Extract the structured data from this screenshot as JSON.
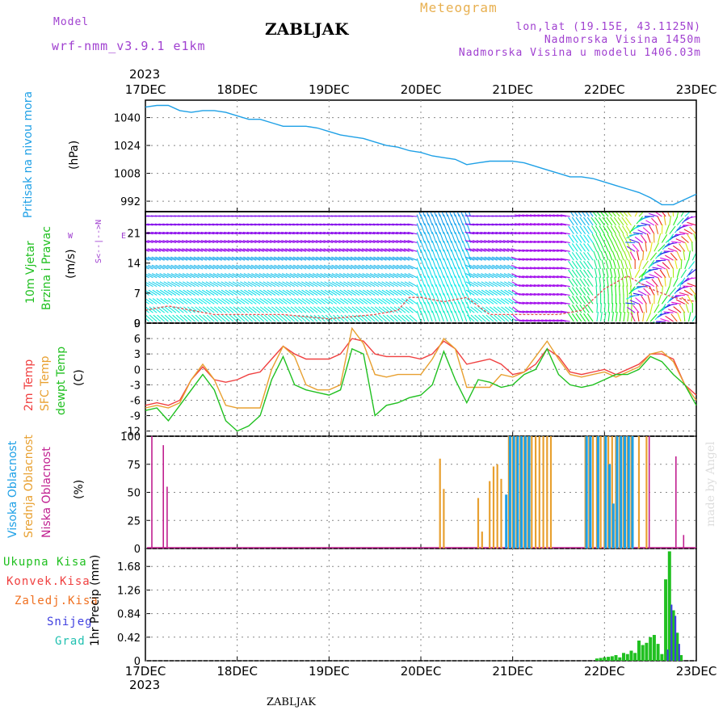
{
  "header": {
    "model_label": "Model",
    "model_name": "wrf-nmm_v3.9.1 e1km",
    "station": "ZABLJAK",
    "meteogram": "Meteogram",
    "coords": "lon,lat (19.15E, 43.1125N)",
    "elev": "Nadmorska Visina 1450m",
    "elev_model": "Nadmorska Visina u modelu 1406.03m",
    "year_top": "2023",
    "year_bottom": "2023",
    "footer_station": "ZABLJAK",
    "credit": "made by Angel"
  },
  "colors": {
    "pressure": "#1ea0e6",
    "t2m": "#f04040",
    "sfc": "#e8a030",
    "dew": "#20c020",
    "high_cloud": "#1ea0e6",
    "mid_cloud": "#e8a030",
    "low_cloud": "#c02090",
    "precip_total": "#20c020",
    "precip_conv": "#f04040",
    "precip_frz": "#f07020",
    "snow": "#4040e0",
    "grad": "#20c0b0"
  },
  "chart_data": [
    {
      "type": "line",
      "panel": "pressure",
      "ylabels": [
        "Pritisak na nivou mora",
        "(hPa)"
      ],
      "yticks": [
        "992",
        "1008",
        "1024",
        "1040"
      ],
      "ylim": [
        986,
        1050
      ],
      "xticks": [
        "17DEC",
        "18DEC",
        "19DEC",
        "20DEC",
        "21DEC",
        "22DEC",
        "23DEC"
      ],
      "xlim": [
        0,
        144
      ],
      "series": [
        {
          "x": [
            0,
            3,
            6,
            9,
            12,
            15,
            18,
            21,
            24,
            27,
            30,
            33,
            36,
            39,
            42,
            45,
            48,
            51,
            54,
            57,
            60,
            63,
            66,
            69,
            72,
            75,
            78,
            81,
            84,
            87,
            90,
            93,
            96,
            99,
            102,
            105,
            108,
            111,
            114,
            117,
            120,
            123,
            126,
            129,
            132,
            135,
            138,
            141,
            144
          ],
          "values": [
            1046,
            1047,
            1047,
            1044,
            1043,
            1044,
            1044,
            1043,
            1041,
            1039,
            1039,
            1037,
            1035,
            1035,
            1035,
            1034,
            1032,
            1030,
            1029,
            1028,
            1026,
            1024,
            1023,
            1021,
            1020,
            1018,
            1017,
            1016,
            1013,
            1014,
            1015,
            1015,
            1015,
            1014,
            1012,
            1010,
            1008,
            1006,
            1006,
            1005,
            1003,
            1001,
            999,
            997,
            994,
            990,
            990,
            993,
            996
          ]
        }
      ]
    },
    {
      "type": "scatter",
      "panel": "wind",
      "ylabels": [
        "10m Vjetar",
        "Brzina i Pravac",
        "(m/s)"
      ],
      "compass": [
        "N",
        "<--|-->",
        "S",
        "W",
        "E"
      ],
      "yticks": [
        "0",
        "7",
        "14",
        "21"
      ],
      "ylim": [
        0,
        26
      ],
      "xlim": [
        0,
        144
      ],
      "speed_x": [
        0,
        6,
        12,
        18,
        24,
        30,
        36,
        42,
        48,
        54,
        60,
        66,
        69,
        72,
        78,
        84,
        90,
        96,
        102,
        108,
        114,
        120,
        126,
        132,
        138,
        144
      ],
      "speed": [
        3,
        4,
        3,
        2,
        2,
        2,
        2,
        1.5,
        1,
        1.5,
        2,
        3,
        6,
        6,
        5,
        6,
        2,
        2,
        2,
        2,
        3,
        8,
        11,
        8,
        6,
        5
      ],
      "speed_color": "#e05050"
    },
    {
      "type": "line",
      "panel": "temperature",
      "ylabels": [
        "2m Temp",
        "SFC Temp",
        "dewpt Temp",
        "(C)"
      ],
      "yticks": [
        "-12",
        "-9",
        "-6",
        "-3",
        "0",
        "3",
        "6",
        "9"
      ],
      "ylim": [
        -13,
        9
      ],
      "xlim": [
        0,
        144
      ],
      "series": [
        {
          "name": "2m Temp",
          "x": [
            0,
            3,
            6,
            9,
            12,
            15,
            18,
            21,
            24,
            27,
            30,
            33,
            36,
            39,
            42,
            45,
            48,
            51,
            54,
            57,
            60,
            63,
            66,
            69,
            72,
            75,
            78,
            81,
            84,
            87,
            90,
            93,
            96,
            99,
            102,
            105,
            108,
            111,
            114,
            117,
            120,
            123,
            126,
            129,
            132,
            135,
            138,
            141,
            144
          ],
          "values": [
            -7,
            -6.5,
            -7,
            -6,
            -2,
            0.5,
            -2,
            -2.5,
            -2,
            -1,
            -0.5,
            2,
            4.5,
            3,
            2,
            2,
            2,
            3,
            6,
            5.5,
            3,
            2.5,
            2.5,
            2.5,
            2,
            3,
            5.5,
            4,
            1,
            1.5,
            2,
            1,
            -1,
            -0.5,
            1,
            4,
            2.5,
            -0.5,
            -1,
            -0.5,
            0,
            -1,
            0,
            1,
            3,
            3,
            2,
            -3,
            -5
          ]
        },
        {
          "name": "SFC Temp",
          "x": [
            0,
            3,
            6,
            9,
            12,
            15,
            18,
            21,
            24,
            27,
            30,
            33,
            36,
            39,
            42,
            45,
            48,
            51,
            54,
            57,
            60,
            63,
            66,
            69,
            72,
            75,
            78,
            81,
            84,
            87,
            90,
            93,
            96,
            99,
            102,
            105,
            108,
            111,
            114,
            117,
            120,
            123,
            126,
            129,
            132,
            135,
            138,
            141,
            144
          ],
          "values": [
            -7.5,
            -7,
            -7.5,
            -6.5,
            -2,
            1,
            -2,
            -7,
            -7.5,
            -7.5,
            -7.5,
            0,
            4.5,
            2.5,
            -3,
            -4,
            -4,
            -3,
            8,
            5,
            -1,
            -1.5,
            -1,
            -1,
            -1,
            2,
            6,
            4,
            -3.5,
            -3.5,
            -3.5,
            -1,
            -1.5,
            -0.5,
            2.5,
            5.5,
            2,
            -1,
            -1.5,
            -1,
            -0.5,
            -1.5,
            -0.5,
            0.5,
            3,
            3.5,
            1.5,
            -3,
            -6
          ]
        },
        {
          "name": "dewpt Temp",
          "x": [
            0,
            3,
            6,
            9,
            12,
            15,
            18,
            21,
            24,
            27,
            30,
            33,
            36,
            39,
            42,
            45,
            48,
            51,
            54,
            57,
            60,
            63,
            66,
            69,
            72,
            75,
            78,
            81,
            84,
            87,
            90,
            93,
            96,
            99,
            102,
            105,
            108,
            111,
            114,
            117,
            120,
            123,
            126,
            129,
            132,
            135,
            138,
            141,
            144
          ],
          "values": [
            -8,
            -7.5,
            -10,
            -7,
            -4,
            -1,
            -4,
            -10,
            -12,
            -11,
            -9,
            -2,
            2.5,
            -3,
            -4,
            -4.5,
            -5,
            -4,
            4,
            3,
            -9,
            -7,
            -6.5,
            -5.5,
            -5,
            -3,
            3.5,
            -2,
            -6.5,
            -2,
            -2.5,
            -3.5,
            -3,
            -1,
            0,
            4,
            -1,
            -3,
            -3.5,
            -3,
            -2,
            -1,
            -1,
            0,
            2.5,
            1.5,
            -1,
            -3,
            -7
          ]
        }
      ]
    },
    {
      "type": "bar",
      "panel": "cloud",
      "ylabels": [
        "Visoka Oblacnost",
        "Srednja Oblacnost",
        "Niska Oblacnost",
        "(%)"
      ],
      "yticks": [
        "0",
        "25",
        "50",
        "75",
        "100"
      ],
      "ylim": [
        0,
        100
      ],
      "xlim": [
        0,
        144
      ],
      "series": [
        {
          "name": "Niska Oblacnost",
          "x": [
            2,
            5,
            6,
            132,
            139,
            141
          ],
          "values": [
            100,
            92,
            55,
            100,
            82,
            12
          ]
        },
        {
          "name": "Srednja Oblacnost",
          "x": [
            77,
            78,
            87,
            88,
            90,
            91,
            92,
            93,
            95,
            96,
            97,
            98,
            99,
            100,
            101,
            102,
            103,
            104,
            105,
            106,
            115,
            116,
            117,
            118,
            119,
            120,
            121,
            122,
            123,
            124,
            125,
            126,
            127,
            129,
            131
          ],
          "values": [
            80,
            53,
            45,
            15,
            60,
            73,
            75,
            62,
            100,
            100,
            100,
            100,
            100,
            100,
            100,
            100,
            100,
            100,
            100,
            100,
            100,
            100,
            100,
            100,
            100,
            100,
            100,
            100,
            100,
            100,
            100,
            100,
            100,
            100,
            100
          ]
        },
        {
          "name": "Visoka Oblacnost",
          "x": [
            94,
            95,
            96,
            97,
            98,
            99,
            100,
            115,
            116,
            118,
            120,
            121,
            122,
            123,
            124,
            125,
            126,
            127
          ],
          "values": [
            48,
            100,
            100,
            100,
            100,
            100,
            100,
            100,
            100,
            100,
            100,
            75,
            40,
            100,
            100,
            100,
            100,
            100
          ]
        }
      ]
    },
    {
      "type": "bar",
      "panel": "precip",
      "ylabels": [
        "Ukupna Kisa",
        "Konvek.Kisa",
        "Zaledj.Kisa",
        "Snijeg",
        "Grad",
        "1hr Precip (mm)"
      ],
      "yticks": [
        "0",
        "0.42",
        "0.84",
        "1.26",
        "1.68"
      ],
      "ylim": [
        0,
        2.0
      ],
      "xlim": [
        0,
        144
      ],
      "series": [
        {
          "name": "Ukupna Kisa",
          "x": [
            118,
            119,
            120,
            121,
            122,
            123,
            124,
            125,
            126,
            127,
            128,
            129,
            130,
            131,
            132,
            133,
            134,
            135,
            136,
            137,
            138,
            139,
            140
          ],
          "values": [
            0.04,
            0.05,
            0.06,
            0.07,
            0.08,
            0.1,
            0.06,
            0.14,
            0.12,
            0.18,
            0.14,
            0.36,
            0.28,
            0.32,
            0.42,
            0.46,
            0.3,
            0.12,
            1.45,
            1.95,
            0.9,
            0.5,
            0.1
          ]
        },
        {
          "name": "Snijeg",
          "x": [
            136,
            137,
            138,
            139
          ],
          "values": [
            0.2,
            1.0,
            0.8,
            0.3
          ]
        }
      ]
    }
  ]
}
